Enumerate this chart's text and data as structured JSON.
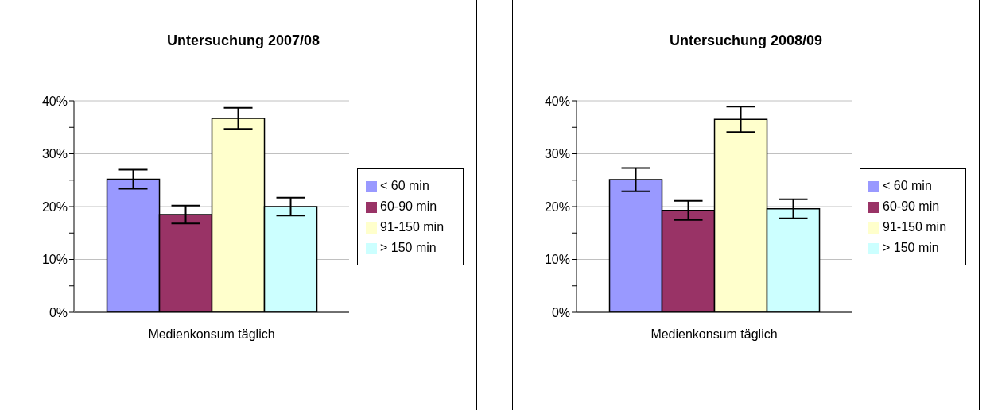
{
  "chart_data": [
    {
      "type": "bar",
      "title": "Untersuchung 2007/08",
      "categories": [
        "Medienkonsum täglich"
      ],
      "series": [
        {
          "name": "< 60 min",
          "color": "#9999ff",
          "values": [
            25.2
          ],
          "errors": [
            1.8
          ]
        },
        {
          "name": "60-90 min",
          "color": "#993366",
          "values": [
            18.5
          ],
          "errors": [
            1.7
          ]
        },
        {
          "name": "91-150 min",
          "color": "#ffffcc",
          "values": [
            36.7
          ],
          "errors": [
            2.0
          ]
        },
        {
          "name": "> 150 min",
          "color": "#ccffff",
          "values": [
            20.0
          ],
          "errors": [
            1.7
          ]
        }
      ],
      "ylim": [
        0,
        40
      ],
      "yticks": [
        {
          "value": 0,
          "label": "0%"
        },
        {
          "value": 5,
          "label": null
        },
        {
          "value": 10,
          "label": "10%"
        },
        {
          "value": 15,
          "label": null
        },
        {
          "value": 20,
          "label": "20%"
        },
        {
          "value": 25,
          "label": null
        },
        {
          "value": 30,
          "label": "30%"
        },
        {
          "value": 35,
          "label": null
        },
        {
          "value": 40,
          "label": "40%"
        }
      ],
      "grid": "y",
      "legend": "right"
    },
    {
      "type": "bar",
      "title": "Untersuchung 2008/09",
      "categories": [
        "Medienkonsum täglich"
      ],
      "series": [
        {
          "name": "< 60 min",
          "color": "#9999ff",
          "values": [
            25.1
          ],
          "errors": [
            2.2
          ]
        },
        {
          "name": "60-90 min",
          "color": "#993366",
          "values": [
            19.3
          ],
          "errors": [
            1.8
          ]
        },
        {
          "name": "91-150 min",
          "color": "#ffffcc",
          "values": [
            36.5
          ],
          "errors": [
            2.4
          ]
        },
        {
          "name": "> 150 min",
          "color": "#ccffff",
          "values": [
            19.6
          ],
          "errors": [
            1.8
          ]
        }
      ],
      "ylim": [
        0,
        40
      ],
      "yticks": [
        {
          "value": 0,
          "label": "0%"
        },
        {
          "value": 5,
          "label": null
        },
        {
          "value": 10,
          "label": "10%"
        },
        {
          "value": 15,
          "label": null
        },
        {
          "value": 20,
          "label": "20%"
        },
        {
          "value": 25,
          "label": null
        },
        {
          "value": 30,
          "label": "30%"
        },
        {
          "value": 35,
          "label": null
        },
        {
          "value": 40,
          "label": "40%"
        }
      ],
      "grid": "y",
      "legend": "right"
    }
  ]
}
